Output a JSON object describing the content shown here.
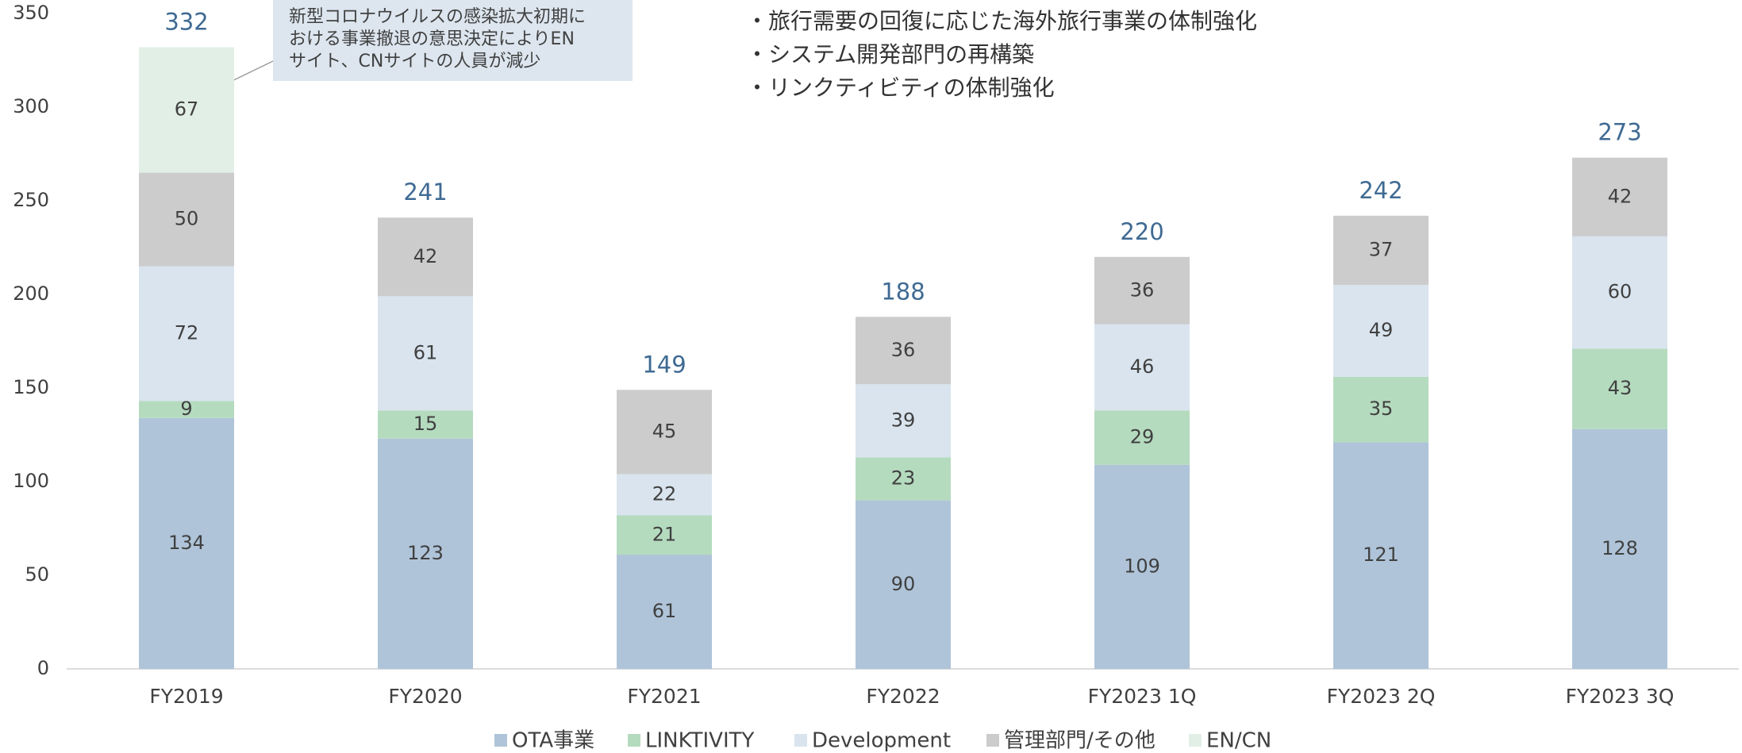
{
  "chart_data": {
    "type": "stacked_bar",
    "categories": [
      "FY2019",
      "FY2020",
      "FY2021",
      "FY2022",
      "FY2023 1Q",
      "FY2023 2Q",
      "FY2023 3Q"
    ],
    "series": [
      {
        "name": "OTA事業",
        "color": "#afc4d9",
        "values": [
          134,
          123,
          61,
          90,
          109,
          121,
          128
        ]
      },
      {
        "name": "LINKTIVITY",
        "color": "#b5dbbf",
        "values": [
          9,
          15,
          21,
          23,
          29,
          35,
          43
        ]
      },
      {
        "name": "Development",
        "color": "#d9e4ee",
        "values": [
          72,
          61,
          22,
          39,
          46,
          49,
          60
        ]
      },
      {
        "name": "管理部門/その他",
        "color": "#cccccc",
        "values": [
          50,
          42,
          45,
          36,
          36,
          37,
          42
        ]
      },
      {
        "name": "EN/CN",
        "color": "#e2efe6",
        "values": [
          67,
          null,
          null,
          null,
          null,
          null,
          null
        ]
      }
    ],
    "totals": [
      332,
      241,
      149,
      188,
      220,
      242,
      273
    ],
    "ylim": [
      0,
      350
    ],
    "yticks": [
      0,
      50,
      100,
      150,
      200,
      250,
      300,
      350
    ],
    "grid": false,
    "legend": "bottom",
    "annotation": [
      "新型コロナウイルスの感染拡大初期に",
      "おける事業撤退の意思決定によりEN",
      "サイト、CNサイトの人員が減少"
    ],
    "notes": [
      "・旅行需要の回復に応じた海外旅行事業の体制強化",
      "・システム開発部門の再構築",
      "・リンクティビティの体制強化"
    ]
  }
}
